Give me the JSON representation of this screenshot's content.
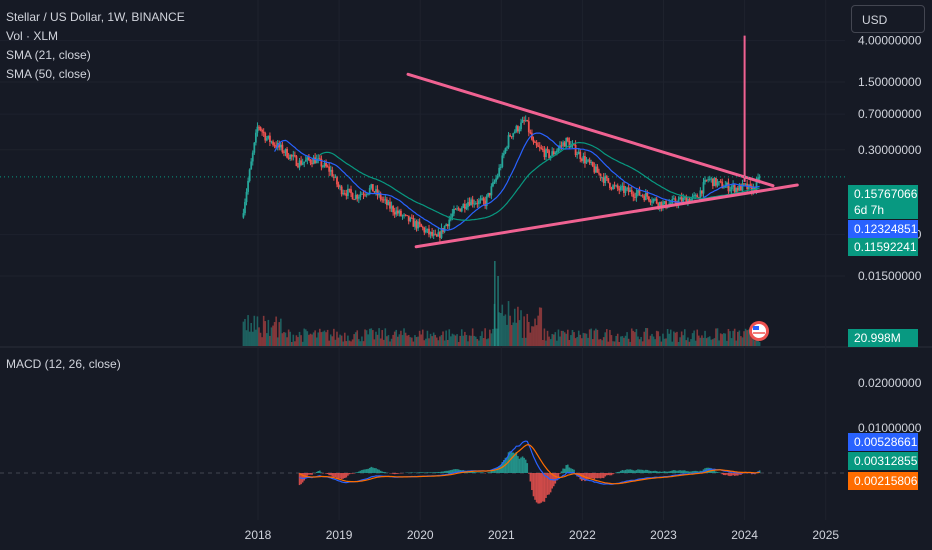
{
  "legend": {
    "title": "Stellar / US Dollar, 1W, BINANCE",
    "vol": "Vol · XLM",
    "sma21": "SMA (21, close)",
    "sma50": "SMA (50, close)",
    "macd": "MACD (12, 26, close)"
  },
  "currency_button": "USD",
  "colors": {
    "background": "#161a25",
    "up": "#26a69a",
    "down": "#ef5350",
    "sma21": "#2962ff",
    "sma50": "#089981",
    "trendline": "#f06292",
    "macd": "#2962ff",
    "signal": "#ff6d00"
  },
  "tags": {
    "price": "0.15767066",
    "countdown": "6d 7h",
    "sma21": "0.12324851",
    "sma50": "0.11592241",
    "volume": "20.998M",
    "macd": "0.00528661",
    "signal": "0.00312855",
    "histogram": "0.00215806"
  },
  "chart_data": [
    {
      "type": "candlestick",
      "title": "Stellar / US Dollar, 1W, BINANCE",
      "y_scale": "log",
      "y_ticks": [
        "4.00000000",
        "1.50000000",
        "0.70000000",
        "0.30000000",
        "0.04000000",
        "0.01500000"
      ],
      "x_ticks": [
        "2018",
        "2019",
        "2020",
        "2021",
        "2022",
        "2023",
        "2024",
        "2025"
      ],
      "last_price": 0.15767066,
      "sma21_last": 0.12324851,
      "sma50_last": 0.11592241,
      "price_path": [
        [
          2017.8,
          0.06
        ],
        [
          2018.0,
          0.55
        ],
        [
          2018.1,
          0.4
        ],
        [
          2018.3,
          0.3
        ],
        [
          2018.5,
          0.22
        ],
        [
          2018.7,
          0.24
        ],
        [
          2018.9,
          0.18
        ],
        [
          2019.0,
          0.12
        ],
        [
          2019.2,
          0.1
        ],
        [
          2019.4,
          0.12
        ],
        [
          2019.6,
          0.08
        ],
        [
          2019.8,
          0.06
        ],
        [
          2020.0,
          0.048
        ],
        [
          2020.2,
          0.036
        ],
        [
          2020.4,
          0.065
        ],
        [
          2020.6,
          0.09
        ],
        [
          2020.8,
          0.085
        ],
        [
          2020.95,
          0.16
        ],
        [
          2021.1,
          0.42
        ],
        [
          2021.3,
          0.6
        ],
        [
          2021.4,
          0.33
        ],
        [
          2021.6,
          0.26
        ],
        [
          2021.8,
          0.37
        ],
        [
          2022.0,
          0.25
        ],
        [
          2022.2,
          0.17
        ],
        [
          2022.4,
          0.12
        ],
        [
          2022.6,
          0.11
        ],
        [
          2022.8,
          0.1
        ],
        [
          2023.0,
          0.08
        ],
        [
          2023.2,
          0.09
        ],
        [
          2023.4,
          0.095
        ],
        [
          2023.55,
          0.15
        ],
        [
          2023.7,
          0.13
        ],
        [
          2023.9,
          0.12
        ],
        [
          2024.0,
          0.125
        ],
        [
          2024.1,
          0.115
        ],
        [
          2024.2,
          0.158
        ]
      ],
      "spike": {
        "x": 2024.0,
        "high": 4.5
      },
      "trendlines": [
        {
          "from": [
            2019.85,
            1.8
          ],
          "to": [
            2024.35,
            0.128
          ]
        },
        {
          "from": [
            2019.95,
            0.03
          ],
          "to": [
            2024.65,
            0.13
          ]
        }
      ],
      "volume_last": "20.998M"
    },
    {
      "type": "line",
      "title": "MACD (12, 26, close)",
      "y_ticks": [
        "0.02000000",
        "0.01000000"
      ],
      "macd_last": 0.00528661,
      "signal_last": 0.00312855,
      "histogram_last": 0.00215806
    }
  ]
}
